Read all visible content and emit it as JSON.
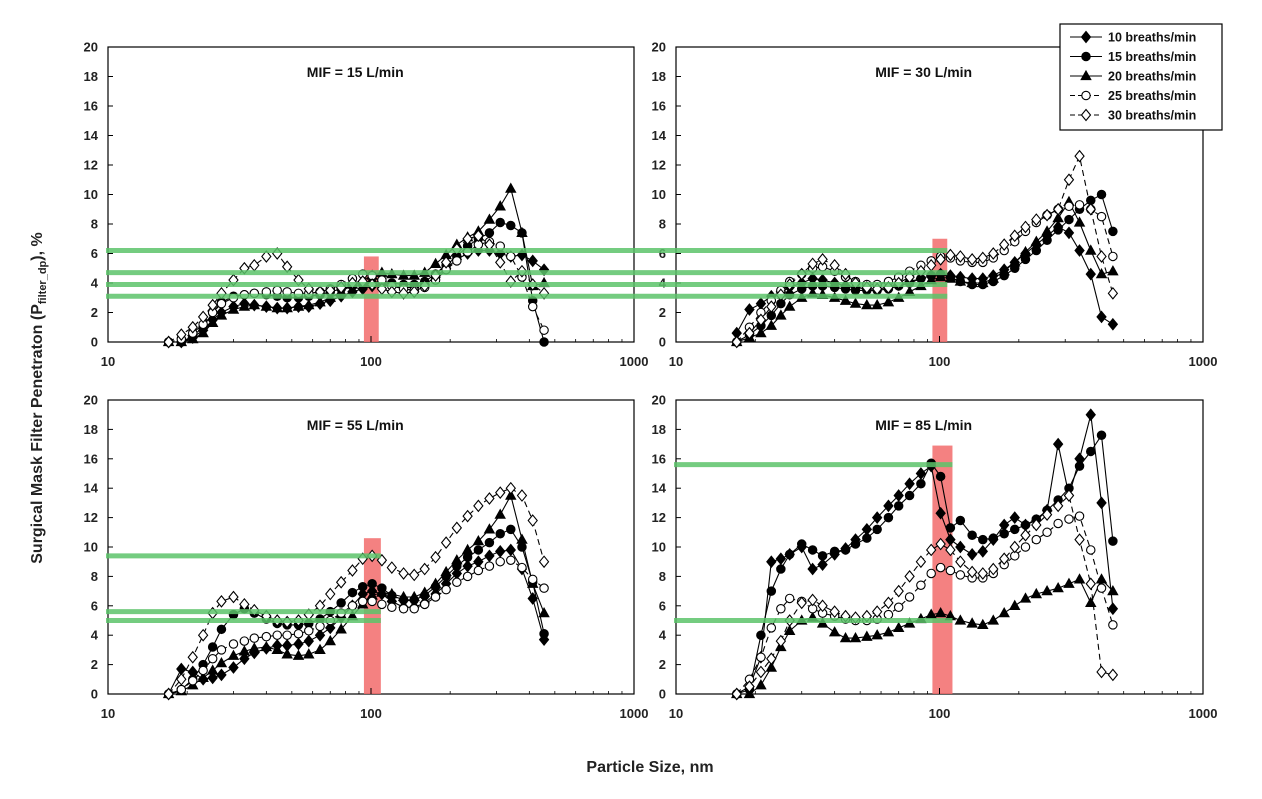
{
  "chart_data": {
    "type": "line",
    "figure": {
      "ylabel_main": "Surgical Mask Filter Penetraton (P",
      "ylabel_sub": "filter_dp",
      "ylabel_end": "), %",
      "xlabel": "Particle Size, nm",
      "x_scale": "log",
      "xlim": [
        10,
        1000
      ],
      "ylim": [
        0,
        20
      ],
      "x_ticks": [
        10,
        100,
        1000
      ],
      "y_ticks": [
        0,
        2,
        4,
        6,
        8,
        10,
        12,
        14,
        16,
        18,
        20
      ],
      "grid": false,
      "legend_position": "top-right"
    },
    "legend": [
      {
        "name": "10 breaths/min",
        "marker": "diamond-filled",
        "dash": "solid"
      },
      {
        "name": "15 breaths/min",
        "marker": "circle-filled",
        "dash": "solid"
      },
      {
        "name": "20 breaths/min",
        "marker": "triangle-filled",
        "dash": "solid"
      },
      {
        "name": "25 breaths/min",
        "marker": "circle-open",
        "dash": "dashed"
      },
      {
        "name": "30 breaths/min",
        "marker": "diamond-open",
        "dash": "dashed"
      }
    ],
    "colors": {
      "highlight_band": "#f26b6b",
      "reference_line": "#5cc46a",
      "series": "#000000"
    },
    "x": [
      17,
      19,
      21,
      23,
      25,
      27,
      30,
      33,
      36,
      40,
      44,
      48,
      53,
      58,
      64,
      70,
      77,
      85,
      93,
      101,
      110,
      120,
      133,
      146,
      160,
      176,
      193,
      212,
      233,
      256,
      282,
      310,
      340,
      375,
      412,
      455
    ],
    "panels": [
      {
        "title": "MIF = 15 L/min",
        "highlight_band_x": [
          94,
          107
        ],
        "reference_lines_y": [
          6.2,
          4.7,
          3.9,
          3.1
        ],
        "series": [
          {
            "name": "10 breaths/min",
            "values": [
              0,
              0,
              0.3,
              0.8,
              1.5,
              2.0,
              2.4,
              2.6,
              2.5,
              2.4,
              2.3,
              2.3,
              2.4,
              2.4,
              2.6,
              2.8,
              3.1,
              3.4,
              3.6,
              3.8,
              3.9,
              3.8,
              3.7,
              3.7,
              3.9,
              4.4,
              5.0,
              5.6,
              6.0,
              6.2,
              6.2,
              6.0,
              5.8,
              5.9,
              5.5,
              4.9
            ]
          },
          {
            "name": "15 breaths/min",
            "values": [
              0,
              0,
              0.4,
              1.0,
              2.0,
              2.7,
              3.1,
              3.2,
              3.3,
              3.2,
              3.1,
              3.0,
              3.0,
              3.1,
              3.2,
              3.4,
              3.6,
              3.8,
              3.9,
              4.0,
              4.1,
              4.0,
              3.9,
              3.9,
              4.1,
              4.6,
              5.2,
              5.8,
              6.5,
              7.0,
              7.4,
              8.1,
              7.9,
              7.4,
              2.8,
              0.0
            ]
          },
          {
            "name": "20 breaths/min",
            "values": [
              0,
              0,
              0.2,
              0.6,
              1.3,
              1.8,
              2.2,
              2.4,
              2.5,
              2.4,
              2.3,
              2.3,
              2.4,
              2.5,
              2.7,
              3.0,
              3.4,
              3.9,
              4.2,
              4.5,
              4.7,
              4.6,
              4.5,
              4.5,
              4.7,
              5.3,
              5.9,
              6.6,
              7.1,
              7.5,
              8.3,
              9.2,
              10.4,
              7.4,
              3.8,
              4.0
            ]
          },
          {
            "name": "25 breaths/min",
            "values": [
              0,
              0.2,
              0.6,
              1.2,
              2.0,
              2.6,
              3.0,
              3.2,
              3.3,
              3.4,
              3.5,
              3.4,
              3.3,
              3.3,
              3.4,
              3.6,
              3.9,
              4.3,
              4.6,
              4.5,
              4.2,
              3.8,
              3.6,
              3.5,
              3.7,
              4.2,
              4.9,
              5.5,
              6.1,
              6.6,
              6.8,
              6.5,
              5.8,
              4.4,
              2.4,
              0.8
            ]
          },
          {
            "name": "30 breaths/min",
            "values": [
              0,
              0.5,
              1.0,
              1.7,
              2.5,
              3.3,
              4.2,
              5.0,
              5.2,
              5.8,
              6.0,
              5.1,
              4.2,
              3.6,
              3.4,
              3.5,
              3.7,
              4.0,
              4.1,
              3.9,
              3.6,
              3.4,
              3.3,
              3.4,
              3.8,
              4.5,
              5.4,
              6.3,
              7.0,
              7.2,
              6.6,
              5.4,
              4.1,
              4.8,
              3.9,
              3.3
            ]
          }
        ]
      },
      {
        "title": "MIF = 30 L/min",
        "highlight_band_x": [
          94,
          107
        ],
        "reference_lines_y": [
          6.2,
          4.7,
          3.9,
          3.1
        ],
        "series": [
          {
            "name": "10 breaths/min",
            "values": [
              0.6,
              2.2,
              2.6,
              3.1,
              3.4,
              3.7,
              4.0,
              4.3,
              4.2,
              4.0,
              3.8,
              3.7,
              3.6,
              3.6,
              3.7,
              3.9,
              4.1,
              4.3,
              4.5,
              4.6,
              4.5,
              4.4,
              4.3,
              4.3,
              4.5,
              4.9,
              5.4,
              6.0,
              6.6,
              7.2,
              7.8,
              7.4,
              6.2,
              4.6,
              1.7,
              1.2
            ]
          },
          {
            "name": "15 breaths/min",
            "values": [
              0,
              0.5,
              1.1,
              1.8,
              2.6,
              3.2,
              3.6,
              3.8,
              3.8,
              3.7,
              3.6,
              3.5,
              3.5,
              3.5,
              3.6,
              3.8,
              4.0,
              4.3,
              4.5,
              4.6,
              4.4,
              4.1,
              3.9,
              3.9,
              4.1,
              4.5,
              5.0,
              5.6,
              6.2,
              6.9,
              7.6,
              8.3,
              9.0,
              9.6,
              10.0,
              7.5
            ]
          },
          {
            "name": "20 breaths/min",
            "values": [
              0,
              0.3,
              0.6,
              1.1,
              1.8,
              2.4,
              3.0,
              3.3,
              3.2,
              3.0,
              2.8,
              2.6,
              2.5,
              2.5,
              2.7,
              3.0,
              3.4,
              3.8,
              4.2,
              4.4,
              4.3,
              4.1,
              4.0,
              4.0,
              4.3,
              4.8,
              5.4,
              6.1,
              6.8,
              7.5,
              8.4,
              9.5,
              8.1,
              6.2,
              4.6,
              4.8
            ]
          },
          {
            "name": "25 breaths/min",
            "values": [
              0,
              1.0,
              2.0,
              2.8,
              3.5,
              4.1,
              4.6,
              5.0,
              5.1,
              4.8,
              4.4,
              4.1,
              3.9,
              3.9,
              4.1,
              4.4,
              4.8,
              5.2,
              5.5,
              5.8,
              5.7,
              5.5,
              5.4,
              5.4,
              5.7,
              6.2,
              6.8,
              7.5,
              8.1,
              8.6,
              9.0,
              9.2,
              9.3,
              9.0,
              8.5,
              5.8
            ]
          },
          {
            "name": "30 breaths/min",
            "values": [
              0,
              0.6,
              1.5,
              2.4,
              3.2,
              3.9,
              4.6,
              5.3,
              5.6,
              5.2,
              4.6,
              4.0,
              3.7,
              3.6,
              3.7,
              4.0,
              4.4,
              4.8,
              5.2,
              5.6,
              5.9,
              5.8,
              5.6,
              5.7,
              6.0,
              6.6,
              7.2,
              7.8,
              8.3,
              8.6,
              9.0,
              11.0,
              12.6,
              9.0,
              5.8,
              3.3
            ]
          }
        ]
      },
      {
        "title": "MIF = 55 L/min",
        "highlight_band_x": [
          94,
          109
        ],
        "reference_lines_y": [
          9.4,
          5.6,
          5.0
        ],
        "series": [
          {
            "name": "10 breaths/min",
            "values": [
              0,
              1.7,
              1.5,
              1.0,
              1.1,
              1.3,
              1.8,
              2.4,
              2.8,
              3.1,
              3.3,
              3.3,
              3.4,
              3.6,
              4.0,
              4.5,
              5.2,
              6.0,
              6.8,
              7.0,
              6.8,
              6.3,
              5.9,
              5.9,
              6.2,
              6.8,
              7.5,
              8.2,
              8.7,
              9.0,
              9.4,
              9.7,
              9.8,
              8.5,
              6.5,
              3.7
            ]
          },
          {
            "name": "15 breaths/min",
            "values": [
              0,
              0.3,
              1.0,
              2.0,
              3.2,
              4.4,
              5.4,
              5.8,
              5.5,
              5.1,
              4.8,
              4.7,
              4.7,
              4.8,
              5.1,
              5.6,
              6.2,
              6.9,
              7.3,
              7.5,
              7.2,
              6.7,
              6.4,
              6.4,
              6.7,
              7.3,
              8.0,
              8.7,
              9.3,
              9.8,
              10.3,
              10.9,
              11.2,
              10.0,
              7.6,
              4.1
            ]
          },
          {
            "name": "20 breaths/min",
            "values": [
              0,
              0.2,
              0.6,
              1.1,
              1.6,
              2.1,
              2.6,
              2.9,
              3.1,
              3.2,
              3.0,
              2.7,
              2.6,
              2.7,
              3.0,
              3.6,
              4.4,
              5.3,
              6.1,
              6.7,
              6.9,
              6.8,
              6.6,
              6.6,
              6.9,
              7.5,
              8.3,
              9.1,
              9.8,
              10.4,
              11.2,
              12.2,
              13.5,
              10.5,
              7.5,
              5.5
            ]
          },
          {
            "name": "25 breaths/min",
            "values": [
              0,
              0.3,
              0.9,
              1.6,
              2.4,
              3.0,
              3.4,
              3.6,
              3.8,
              3.9,
              4.0,
              4.0,
              4.1,
              4.3,
              4.6,
              5.0,
              5.5,
              6.0,
              6.3,
              6.3,
              6.1,
              5.9,
              5.8,
              5.8,
              6.1,
              6.6,
              7.1,
              7.6,
              8.0,
              8.4,
              8.7,
              9.0,
              9.1,
              8.6,
              7.8,
              7.2
            ]
          },
          {
            "name": "30 breaths/min",
            "values": [
              0,
              1.0,
              2.5,
              4.0,
              5.5,
              6.3,
              6.6,
              6.1,
              5.7,
              5.3,
              5.0,
              4.9,
              5.0,
              5.4,
              6.0,
              6.8,
              7.6,
              8.4,
              9.2,
              9.4,
              9.1,
              8.6,
              8.2,
              8.1,
              8.5,
              9.3,
              10.3,
              11.3,
              12.1,
              12.8,
              13.3,
              13.7,
              14.0,
              13.5,
              11.8,
              9.0
            ]
          }
        ]
      },
      {
        "title": "MIF = 85 L/min",
        "highlight_band_x": [
          94,
          112
        ],
        "reference_lines_y": [
          15.6,
          5.0
        ],
        "series": [
          {
            "name": "10 breaths/min",
            "values": [
              0,
              0.5,
              2.5,
              9.0,
              9.2,
              9.5,
              10.0,
              8.5,
              8.8,
              9.5,
              9.9,
              10.5,
              11.2,
              12.0,
              12.8,
              13.5,
              14.3,
              15.0,
              15.5,
              12.3,
              10.5,
              10.0,
              9.5,
              9.7,
              10.5,
              11.5,
              12.0,
              11.5,
              11.8,
              12.5,
              17.0,
              13.5,
              16.0,
              19.0,
              13.0,
              5.8
            ]
          },
          {
            "name": "15 breaths/min",
            "values": [
              0,
              0.3,
              4.0,
              7.0,
              8.5,
              9.5,
              10.2,
              9.8,
              9.4,
              9.7,
              9.8,
              10.2,
              10.6,
              11.2,
              12.0,
              12.8,
              13.5,
              14.3,
              15.7,
              14.8,
              11.3,
              11.8,
              10.8,
              10.5,
              10.6,
              10.9,
              11.2,
              11.5,
              11.9,
              12.5,
              13.2,
              14.0,
              15.5,
              16.5,
              17.6,
              10.4
            ]
          },
          {
            "name": "20 breaths/min",
            "values": [
              0,
              0,
              0.6,
              1.8,
              3.2,
              4.3,
              5.0,
              5.2,
              4.8,
              4.2,
              3.8,
              3.8,
              3.9,
              4.0,
              4.2,
              4.5,
              4.8,
              5.1,
              5.4,
              5.5,
              5.3,
              5.0,
              4.8,
              4.7,
              5.0,
              5.5,
              6.0,
              6.5,
              6.8,
              7.0,
              7.2,
              7.5,
              7.8,
              6.2,
              7.8,
              7.0
            ]
          },
          {
            "name": "25 breaths/min",
            "values": [
              0,
              1.0,
              2.5,
              4.5,
              5.8,
              6.5,
              6.3,
              5.8,
              5.5,
              5.3,
              5.1,
              5.0,
              5.0,
              5.1,
              5.4,
              5.9,
              6.6,
              7.4,
              8.2,
              8.6,
              8.4,
              8.1,
              7.9,
              7.9,
              8.2,
              8.8,
              9.4,
              10.0,
              10.5,
              11.0,
              11.6,
              11.9,
              12.1,
              9.8,
              7.2,
              4.7
            ]
          },
          {
            "name": "30 breaths/min",
            "values": [
              0,
              0.5,
              1.5,
              2.4,
              3.6,
              5.0,
              6.2,
              6.4,
              6.0,
              5.6,
              5.3,
              5.2,
              5.3,
              5.6,
              6.2,
              7.0,
              8.0,
              9.0,
              9.8,
              10.2,
              9.8,
              9.0,
              8.3,
              8.2,
              8.5,
              9.2,
              10.0,
              10.8,
              11.5,
              12.2,
              12.8,
              13.5,
              10.5,
              7.5,
              1.5,
              1.3
            ]
          }
        ]
      }
    ]
  }
}
